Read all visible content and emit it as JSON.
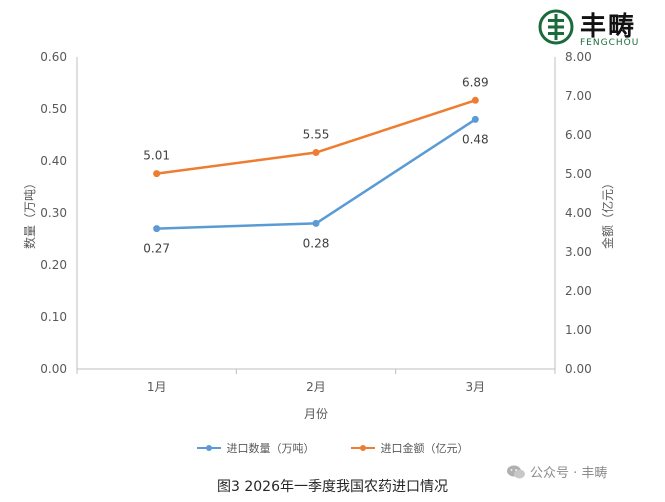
{
  "brand": {
    "name": "丰畴",
    "sub": "FENGCHOU",
    "color": "#1a6b3c"
  },
  "watermark": {
    "icon": "wechat-icon",
    "text": "公众号 · 丰畴"
  },
  "caption": "图3 2026年一季度我国农药进口情况",
  "chart_data": {
    "type": "line",
    "categories": [
      "1月",
      "2月",
      "3月"
    ],
    "xlabel": "月份",
    "ylabel_left": "数量（万吨）",
    "ylabel_right": "金额（亿元）",
    "ylim_left": [
      0,
      0.6
    ],
    "ylim_right": [
      0,
      8
    ],
    "yticks_left": [
      "0.00",
      "0.10",
      "0.20",
      "0.30",
      "0.40",
      "0.50",
      "0.60"
    ],
    "yticks_right": [
      "0.00",
      "1.00",
      "2.00",
      "3.00",
      "4.00",
      "5.00",
      "6.00",
      "7.00",
      "8.00"
    ],
    "grid": false,
    "legend_position": "bottom",
    "series": [
      {
        "name": "进口数量（万吨）",
        "axis": "left",
        "color": "#5b9bd5",
        "values": [
          0.27,
          0.28,
          0.48
        ],
        "labels": [
          "0.27",
          "0.28",
          "0.48"
        ]
      },
      {
        "name": "进口金额（亿元）",
        "axis": "right",
        "color": "#ed7d31",
        "values": [
          5.01,
          5.55,
          6.89
        ],
        "labels": [
          "5.01",
          "5.55",
          "6.89"
        ]
      }
    ]
  }
}
